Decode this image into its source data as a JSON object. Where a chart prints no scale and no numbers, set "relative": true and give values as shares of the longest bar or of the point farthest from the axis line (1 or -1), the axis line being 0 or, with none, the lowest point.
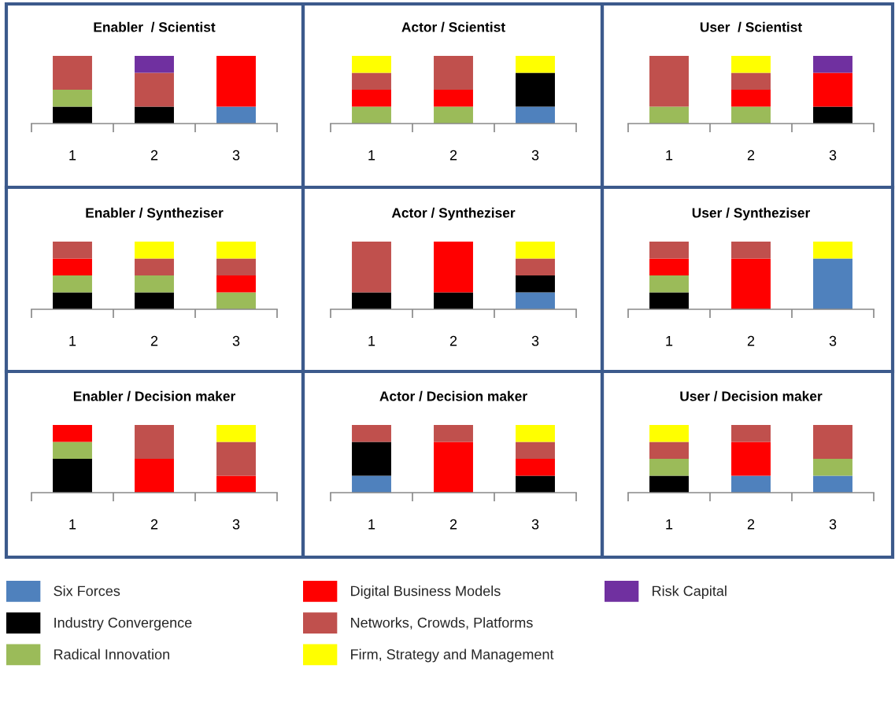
{
  "chart_data": [
    {
      "type": "bar",
      "title": "Enabler  / Scientist",
      "categories": [
        "1",
        "2",
        "3"
      ],
      "stacked": true,
      "relative": true,
      "series": [
        {
          "color": "#4f81bd",
          "values": [
            null,
            null,
            0.25
          ]
        },
        {
          "color": "#000000",
          "values": [
            0.25,
            0.25,
            null
          ]
        },
        {
          "color": "#9bbb59",
          "values": [
            0.25,
            null,
            null
          ]
        },
        {
          "color": "#ff0000",
          "values": [
            null,
            null,
            0.75
          ]
        },
        {
          "color": "#c0504d",
          "values": [
            0.5,
            0.5,
            null
          ]
        },
        {
          "color": "#7030a0",
          "values": [
            null,
            0.25,
            null
          ]
        }
      ]
    },
    {
      "type": "bar",
      "title": "Actor / Scientist",
      "categories": [
        "1",
        "2",
        "3"
      ],
      "stacked": true,
      "relative": true,
      "series": [
        {
          "color": "#4f81bd",
          "values": [
            null,
            null,
            0.25
          ]
        },
        {
          "color": "#000000",
          "values": [
            null,
            null,
            0.5
          ]
        },
        {
          "color": "#9bbb59",
          "values": [
            0.25,
            0.25,
            null
          ]
        },
        {
          "color": "#ff0000",
          "values": [
            0.25,
            0.25,
            null
          ]
        },
        {
          "color": "#c0504d",
          "values": [
            0.25,
            0.5,
            null
          ]
        },
        {
          "color": "#ffff00",
          "values": [
            0.25,
            null,
            0.25
          ]
        }
      ]
    },
    {
      "type": "bar",
      "title": "User  / Scientist",
      "categories": [
        "1",
        "2",
        "3"
      ],
      "stacked": true,
      "relative": true,
      "series": [
        {
          "color": "#000000",
          "values": [
            null,
            null,
            0.25
          ]
        },
        {
          "color": "#9bbb59",
          "values": [
            0.25,
            0.25,
            null
          ]
        },
        {
          "color": "#ff0000",
          "values": [
            null,
            0.25,
            0.5
          ]
        },
        {
          "color": "#c0504d",
          "values": [
            0.75,
            0.25,
            null
          ]
        },
        {
          "color": "#ffff00",
          "values": [
            null,
            0.25,
            null
          ]
        },
        {
          "color": "#7030a0",
          "values": [
            null,
            null,
            0.25
          ]
        }
      ]
    },
    {
      "type": "bar",
      "title": "Enabler / Syntheziser",
      "categories": [
        "1",
        "2",
        "3"
      ],
      "stacked": true,
      "relative": true,
      "series": [
        {
          "color": "#000000",
          "values": [
            0.25,
            0.25,
            null
          ]
        },
        {
          "color": "#9bbb59",
          "values": [
            0.25,
            0.25,
            0.25
          ]
        },
        {
          "color": "#ff0000",
          "values": [
            0.25,
            null,
            0.25
          ]
        },
        {
          "color": "#c0504d",
          "values": [
            0.25,
            0.25,
            0.25
          ]
        },
        {
          "color": "#ffff00",
          "values": [
            null,
            0.25,
            0.25
          ]
        }
      ]
    },
    {
      "type": "bar",
      "title": "Actor / Syntheziser",
      "categories": [
        "1",
        "2",
        "3"
      ],
      "stacked": true,
      "relative": true,
      "series": [
        {
          "color": "#4f81bd",
          "values": [
            null,
            null,
            0.25
          ]
        },
        {
          "color": "#000000",
          "values": [
            0.25,
            0.25,
            0.25
          ]
        },
        {
          "color": "#ff0000",
          "values": [
            null,
            0.75,
            null
          ]
        },
        {
          "color": "#c0504d",
          "values": [
            0.75,
            null,
            0.25
          ]
        },
        {
          "color": "#ffff00",
          "values": [
            null,
            null,
            0.25
          ]
        }
      ]
    },
    {
      "type": "bar",
      "title": "User / Syntheziser",
      "categories": [
        "1",
        "2",
        "3"
      ],
      "stacked": true,
      "relative": true,
      "series": [
        {
          "color": "#4f81bd",
          "values": [
            null,
            null,
            0.75
          ]
        },
        {
          "color": "#000000",
          "values": [
            0.25,
            null,
            null
          ]
        },
        {
          "color": "#9bbb59",
          "values": [
            0.25,
            null,
            null
          ]
        },
        {
          "color": "#ff0000",
          "values": [
            0.25,
            0.75,
            null
          ]
        },
        {
          "color": "#c0504d",
          "values": [
            0.25,
            0.25,
            null
          ]
        },
        {
          "color": "#ffff00",
          "values": [
            null,
            null,
            0.25
          ]
        }
      ]
    },
    {
      "type": "bar",
      "title": "Enabler / Decision maker",
      "categories": [
        "1",
        "2",
        "3"
      ],
      "stacked": true,
      "relative": true,
      "series": [
        {
          "color": "#000000",
          "values": [
            0.5,
            null,
            null
          ]
        },
        {
          "color": "#9bbb59",
          "values": [
            0.25,
            null,
            null
          ]
        },
        {
          "color": "#ff0000",
          "values": [
            0.25,
            0.5,
            0.25
          ]
        },
        {
          "color": "#c0504d",
          "values": [
            null,
            0.5,
            0.5
          ]
        },
        {
          "color": "#ffff00",
          "values": [
            null,
            null,
            0.25
          ]
        }
      ]
    },
    {
      "type": "bar",
      "title": "Actor / Decision maker",
      "categories": [
        "1",
        "2",
        "3"
      ],
      "stacked": true,
      "relative": true,
      "series": [
        {
          "color": "#4f81bd",
          "values": [
            0.25,
            null,
            null
          ]
        },
        {
          "color": "#000000",
          "values": [
            0.5,
            null,
            0.25
          ]
        },
        {
          "color": "#ff0000",
          "values": [
            null,
            0.75,
            0.25
          ]
        },
        {
          "color": "#c0504d",
          "values": [
            0.25,
            0.25,
            0.25
          ]
        },
        {
          "color": "#ffff00",
          "values": [
            null,
            null,
            0.25
          ]
        }
      ]
    },
    {
      "type": "bar",
      "title": "User / Decision maker",
      "categories": [
        "1",
        "2",
        "3"
      ],
      "stacked": true,
      "relative": true,
      "legend": "bottom",
      "series": [
        {
          "name": "Six Forces",
          "color": "#4f81bd",
          "values": [
            null,
            0.25,
            0.25
          ]
        },
        {
          "name": "Industry Convergence",
          "color": "#000000",
          "values": [
            0.25,
            null,
            null
          ]
        },
        {
          "name": "Radical Innovation",
          "color": "#9bbb59",
          "values": [
            0.25,
            null,
            0.25
          ]
        },
        {
          "name": "Digital Business Models",
          "color": "#ff0000",
          "values": [
            null,
            0.5,
            null
          ]
        },
        {
          "name": "Networks, Crowds, Platforms",
          "color": "#c0504d",
          "values": [
            0.25,
            0.25,
            0.5
          ]
        },
        {
          "name": "Firm, Strategy and Management",
          "color": "#ffff00",
          "values": [
            0.25,
            null,
            null
          ]
        },
        {
          "name": "Risk Capital",
          "color": "#7030a0",
          "values": [
            null,
            null,
            null
          ]
        }
      ]
    }
  ]
}
